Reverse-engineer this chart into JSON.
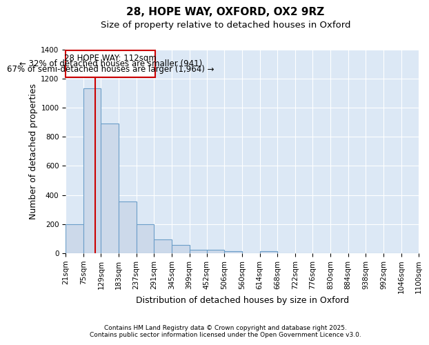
{
  "title1": "28, HOPE WAY, OXFORD, OX2 9RZ",
  "title2": "Size of property relative to detached houses in Oxford",
  "xlabel": "Distribution of detached houses by size in Oxford",
  "ylabel": "Number of detached properties",
  "bar_edges": [
    21,
    75,
    129,
    183,
    237,
    291,
    345,
    399,
    452,
    506,
    560,
    614,
    668,
    722,
    776,
    830,
    884,
    938,
    992,
    1046,
    1100
  ],
  "bar_heights": [
    197,
    1130,
    893,
    355,
    197,
    97,
    57,
    25,
    22,
    12,
    0,
    12,
    0,
    0,
    0,
    0,
    0,
    0,
    0,
    0
  ],
  "bar_color": "#ccd9ea",
  "bar_edge_color": "#6b9ec8",
  "property_size": 112,
  "red_line_color": "#cc0000",
  "annotation_box_color": "#cc0000",
  "annotation_text_line1": "28 HOPE WAY: 112sqm",
  "annotation_text_line2": "← 32% of detached houses are smaller (941)",
  "annotation_text_line3": "67% of semi-detached houses are larger (1,964) →",
  "ylim": [
    0,
    1400
  ],
  "yticks": [
    0,
    200,
    400,
    600,
    800,
    1000,
    1200,
    1400
  ],
  "tick_labels": [
    "21sqm",
    "75sqm",
    "129sqm",
    "183sqm",
    "237sqm",
    "291sqm",
    "345sqm",
    "399sqm",
    "452sqm",
    "506sqm",
    "560sqm",
    "614sqm",
    "668sqm",
    "722sqm",
    "776sqm",
    "830sqm",
    "884sqm",
    "938sqm",
    "992sqm",
    "1046sqm",
    "1100sqm"
  ],
  "bg_color": "#dce8f5",
  "grid_color": "#c0d0e8",
  "footer_text": "Contains HM Land Registry data © Crown copyright and database right 2025.\nContains public sector information licensed under the Open Government Licence v3.0.",
  "title1_fontsize": 11,
  "title2_fontsize": 9.5,
  "xlabel_fontsize": 9,
  "ylabel_fontsize": 9,
  "tick_fontsize": 7.5,
  "annotation_fontsize": 8.5,
  "footer_fontsize": 6.5
}
